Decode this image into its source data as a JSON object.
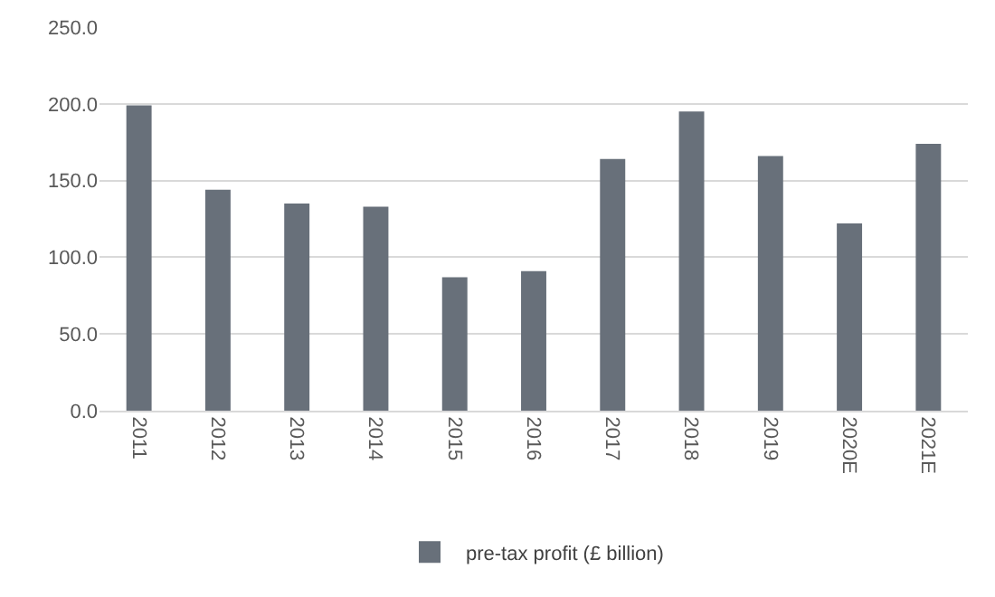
{
  "chart_data": {
    "type": "bar",
    "categories": [
      "2011",
      "2012",
      "2013",
      "2014",
      "2015",
      "2016",
      "2017",
      "2018",
      "2019",
      "2020E",
      "2021E"
    ],
    "series": [
      {
        "name": "pre-tax profit (£ billion)",
        "color": "#68707a",
        "values": [
          199,
          144,
          135,
          133,
          87,
          91,
          164,
          195,
          166,
          122,
          174
        ]
      }
    ],
    "ylim": [
      0,
      250
    ],
    "yticks": [
      {
        "value": 0,
        "label": "0.0"
      },
      {
        "value": 50,
        "label": "50.0"
      },
      {
        "value": 100,
        "label": "100.0"
      },
      {
        "value": 150,
        "label": "150.0"
      },
      {
        "value": 200,
        "label": "200.0"
      },
      {
        "value": 250,
        "label": "250.0"
      }
    ],
    "grid": "y",
    "legend": "bottom"
  }
}
